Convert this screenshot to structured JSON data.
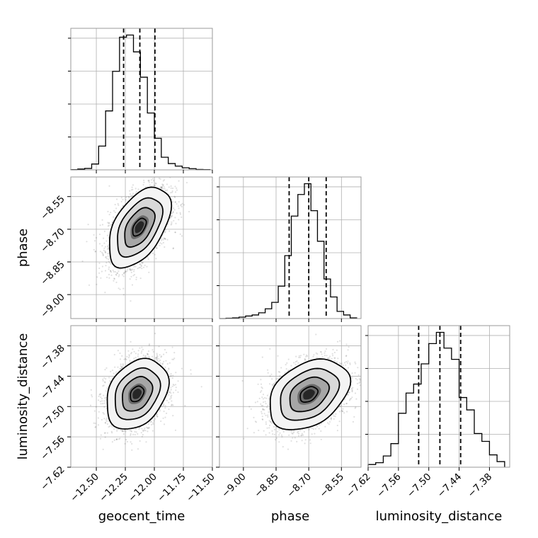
{
  "chart_data": {
    "type": "corner",
    "parameters": [
      "geocent_time",
      "phase",
      "luminosity_distance"
    ],
    "axis_labels": {
      "x": [
        "geocent_time",
        "phase",
        "luminosity_distance"
      ],
      "y": [
        "",
        "phase",
        "luminosity_distance"
      ]
    },
    "ticks": {
      "geocent_time": {
        "range": [
          -12.72,
          -11.5
        ],
        "values": [
          -12.5,
          -12.25,
          -12.0,
          -11.75,
          -11.5
        ],
        "labels": [
          "−12.50",
          "−12.25",
          "−12.00",
          "−11.75",
          "−11.50"
        ]
      },
      "phase": {
        "range": [
          -9.11,
          -8.46
        ],
        "values": [
          -9.0,
          -8.85,
          -8.7,
          -8.55
        ],
        "labels": [
          "−9.00",
          "−8.85",
          "−8.70",
          "−8.55"
        ]
      },
      "luminosity_distance": {
        "range": [
          -7.62,
          -7.34
        ],
        "values": [
          -7.62,
          -7.56,
          -7.5,
          -7.44,
          -7.38
        ],
        "labels": [
          "−7.62",
          "−7.56",
          "−7.50",
          "−7.44",
          "−7.38"
        ]
      }
    },
    "grid": true,
    "histograms": [
      {
        "parameter": "geocent_time",
        "bin_edges": [
          -12.72,
          -12.66,
          -12.6,
          -12.54,
          -12.48,
          -12.42,
          -12.36,
          -12.3,
          -12.24,
          -12.18,
          -12.12,
          -12.06,
          -12.0,
          -11.94,
          -11.88,
          -11.82,
          -11.76,
          -11.7,
          -11.64,
          -11.58,
          -11.52
        ],
        "counts": [
          1,
          4,
          7,
          28,
          113,
          280,
          468,
          630,
          640,
          560,
          440,
          270,
          150,
          60,
          30,
          18,
          10,
          6,
          2,
          1
        ],
        "quantiles": [
          -12.265,
          -12.125,
          -11.995
        ]
      },
      {
        "parameter": "phase",
        "bin_edges": [
          -9.11,
          -9.08,
          -9.05,
          -9.02,
          -8.99,
          -8.96,
          -8.93,
          -8.9,
          -8.87,
          -8.84,
          -8.81,
          -8.78,
          -8.75,
          -8.72,
          -8.69,
          -8.66,
          -8.63,
          -8.6,
          -8.57,
          -8.54,
          -8.51,
          -8.48
        ],
        "counts": [
          0,
          1,
          2,
          4,
          7,
          10,
          16,
          27,
          45,
          90,
          175,
          285,
          345,
          375,
          300,
          215,
          110,
          60,
          20,
          10,
          2
        ],
        "quantiles": [
          -8.79,
          -8.7,
          -8.62
        ]
      },
      {
        "parameter": "luminosity_distance",
        "bin_edges": [
          -7.62,
          -7.605,
          -7.59,
          -7.575,
          -7.56,
          -7.545,
          -7.53,
          -7.515,
          -7.5,
          -7.485,
          -7.47,
          -7.455,
          -7.44,
          -7.425,
          -7.41,
          -7.395,
          -7.38,
          -7.365,
          -7.35
        ],
        "counts": [
          12,
          20,
          50,
          105,
          240,
          330,
          370,
          460,
          550,
          600,
          530,
          480,
          310,
          255,
          150,
          115,
          55,
          25
        ],
        "quantiles": [
          -7.52,
          -7.478,
          -7.437
        ]
      }
    ],
    "joint": [
      {
        "x": "geocent_time",
        "y": "phase",
        "center": [
          -12.13,
          -8.69
        ],
        "std": [
          0.13,
          0.09
        ],
        "correlation": 0.5
      },
      {
        "x": "geocent_time",
        "y": "luminosity_distance",
        "center": [
          -12.15,
          -7.475
        ],
        "std": [
          0.13,
          0.034
        ],
        "correlation": 0.3
      },
      {
        "x": "phase",
        "y": "luminosity_distance",
        "center": [
          -8.7,
          -7.476
        ],
        "std": [
          0.09,
          0.034
        ],
        "correlation": 0.35
      }
    ]
  }
}
